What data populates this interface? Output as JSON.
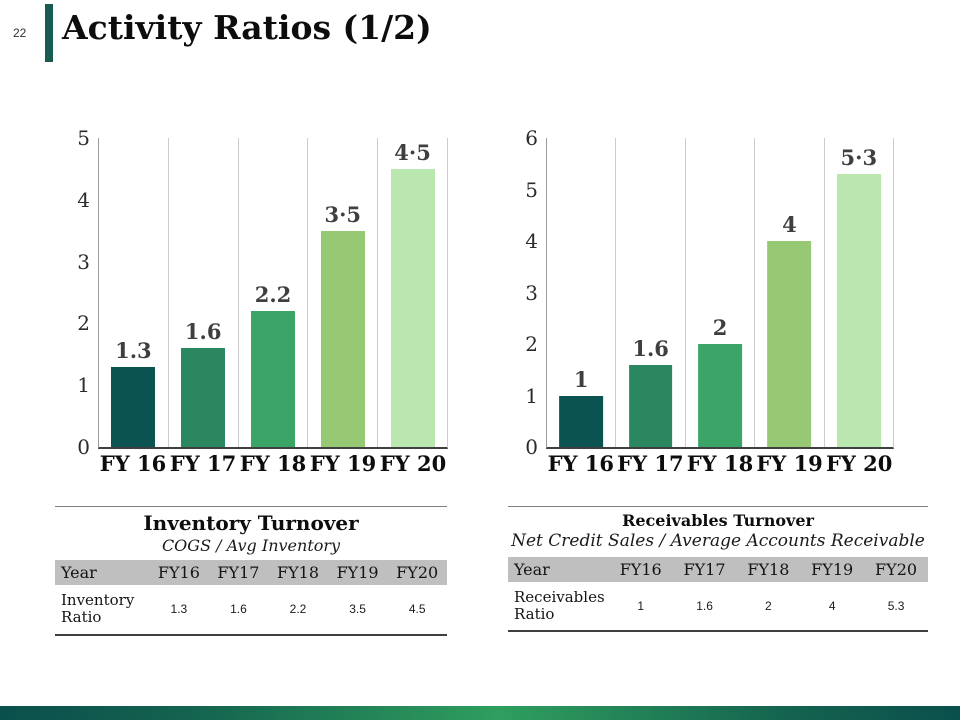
{
  "page": {
    "number": "22",
    "title": "Activity Ratios (1/2)"
  },
  "colors": {
    "accent_bar": "#1a5b51",
    "footer_gradient_ends": "#0a4f4c",
    "footer_gradient_mid": "#2f9e5e",
    "table_header_bg": "#bfbfbf",
    "data_label": "#3f3f3f"
  },
  "chart_data": [
    {
      "type": "bar",
      "title": "Inventory Turnover",
      "categories": [
        "FY 16",
        "FY 17",
        "FY 18",
        "FY 19",
        "FY 20"
      ],
      "values": [
        1.3,
        1.6,
        2.2,
        3.5,
        4.5
      ],
      "bar_labels": [
        "1.3",
        "1.6",
        "2.2",
        "3·5",
        "4·5"
      ],
      "ylim": [
        0,
        5
      ],
      "yticks": [
        0,
        1,
        2,
        3,
        4,
        5
      ],
      "bar_colors": [
        "#0a5351",
        "#2b8760",
        "#3aa566",
        "#97c873",
        "#bae6b0"
      ],
      "grid": "vertical",
      "legend": "none",
      "xlabel": "",
      "ylabel": ""
    },
    {
      "type": "bar",
      "title": "Receivables Turnover",
      "categories": [
        "FY 16",
        "FY 17",
        "FY 18",
        "FY 19",
        "FY 20"
      ],
      "values": [
        1,
        1.6,
        2,
        4,
        5.3
      ],
      "bar_labels": [
        "1",
        "1.6",
        "2",
        "4",
        "5·3"
      ],
      "ylim": [
        0,
        6
      ],
      "yticks": [
        0,
        1,
        2,
        3,
        4,
        5,
        6
      ],
      "bar_colors": [
        "#0a5351",
        "#2b8760",
        "#3aa566",
        "#97c873",
        "#bae6b0"
      ],
      "grid": "vertical",
      "legend": "none",
      "xlabel": "",
      "ylabel": ""
    }
  ],
  "tables": [
    {
      "title": "Inventory Turnover",
      "subtitle": "COGS / Avg Inventory",
      "header": [
        "Year",
        "FY16",
        "FY17",
        "FY18",
        "FY19",
        "FY20"
      ],
      "row_label": "Inventory Ratio",
      "row_values": [
        "1.3",
        "1.6",
        "2.2",
        "3.5",
        "4.5"
      ]
    },
    {
      "title": "Receivables Turnover",
      "subtitle": "Net Credit Sales / Average Accounts Receivable",
      "header": [
        "Year",
        "FY16",
        "FY17",
        "FY18",
        "FY19",
        "FY20"
      ],
      "row_label": "Receivables Ratio",
      "row_values": [
        "1",
        "1.6",
        "2",
        "4",
        "5.3"
      ]
    }
  ]
}
